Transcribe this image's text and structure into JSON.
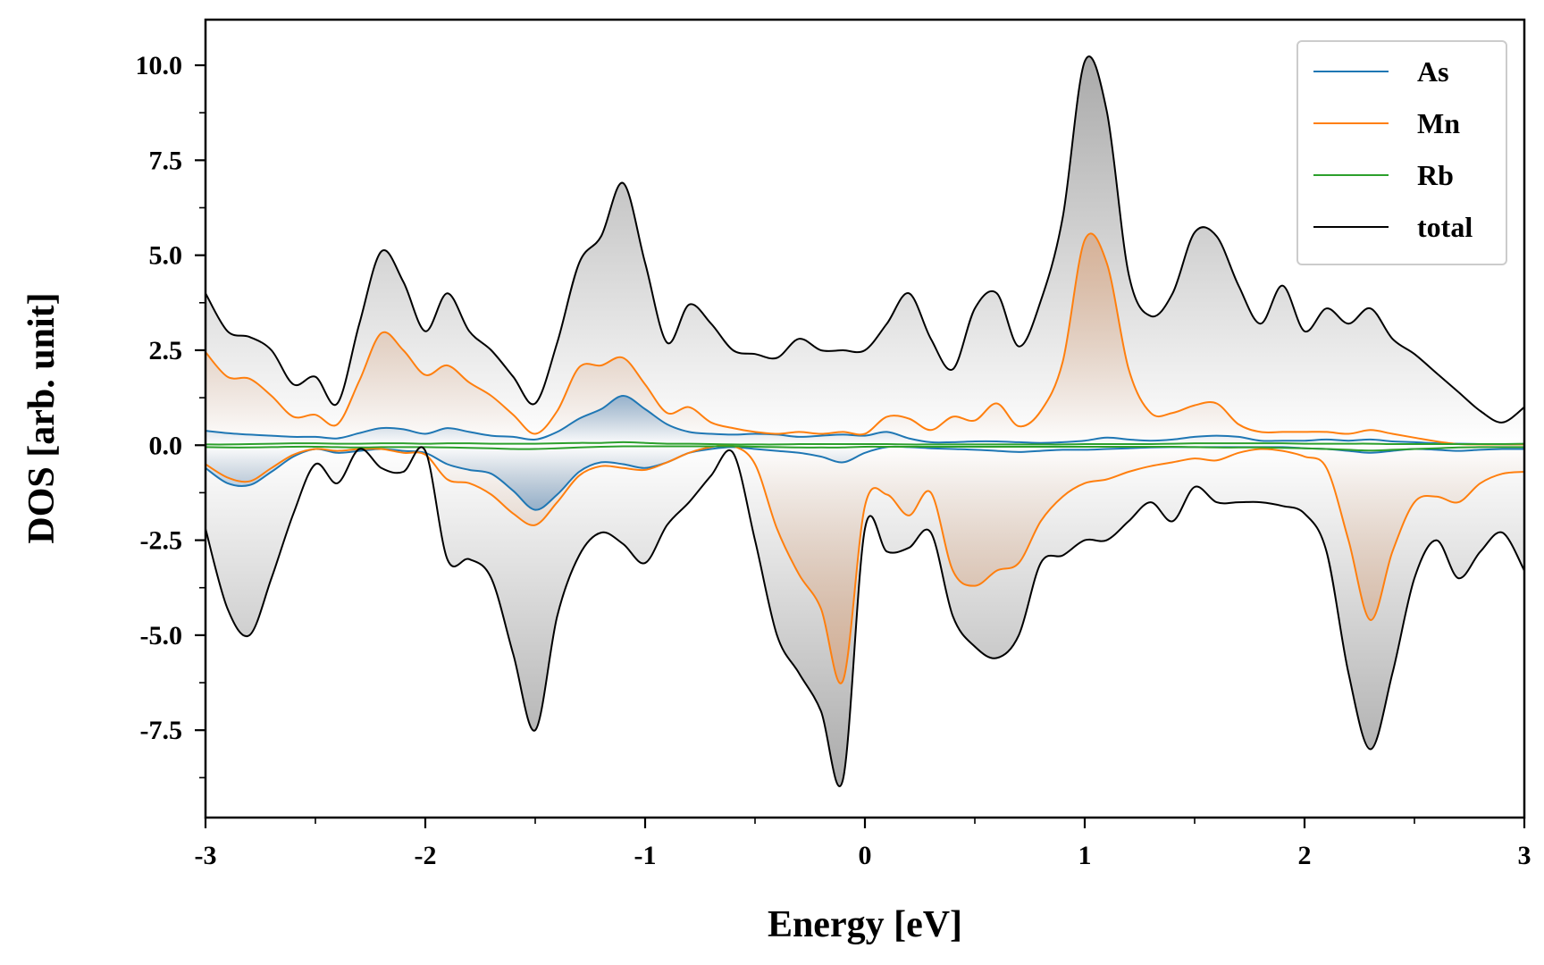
{
  "chart_data": {
    "type": "line",
    "xlabel": "Energy [eV]",
    "ylabel": "DOS [arb. unit]",
    "xlim": [
      -3,
      3
    ],
    "ylim": [
      -9.8,
      11.2
    ],
    "xticks": [
      -3,
      -2,
      -1,
      0,
      1,
      2,
      3
    ],
    "xtick_labels": [
      "-3",
      "-2",
      "-1",
      "0",
      "1",
      "2",
      "3"
    ],
    "yticks": [
      -7.5,
      -5.0,
      -2.5,
      0.0,
      2.5,
      5.0,
      7.5,
      10.0
    ],
    "ytick_labels": [
      "-7.5",
      "-5.0",
      "-2.5",
      "0.0",
      "2.5",
      "5.0",
      "7.5",
      "10.0"
    ],
    "grid": false,
    "legend_position": "top-right",
    "x": [
      -3.0,
      -2.9,
      -2.8,
      -2.7,
      -2.6,
      -2.5,
      -2.4,
      -2.3,
      -2.2,
      -2.1,
      -2.0,
      -1.9,
      -1.8,
      -1.7,
      -1.6,
      -1.5,
      -1.4,
      -1.3,
      -1.2,
      -1.1,
      -1.0,
      -0.9,
      -0.8,
      -0.7,
      -0.6,
      -0.5,
      -0.4,
      -0.3,
      -0.2,
      -0.1,
      0.0,
      0.1,
      0.2,
      0.3,
      0.4,
      0.5,
      0.6,
      0.7,
      0.8,
      0.9,
      1.0,
      1.1,
      1.2,
      1.3,
      1.4,
      1.5,
      1.6,
      1.7,
      1.8,
      1.9,
      2.0,
      2.1,
      2.2,
      2.3,
      2.4,
      2.5,
      2.6,
      2.7,
      2.8,
      2.9,
      3.0
    ],
    "series": [
      {
        "name": "As",
        "color": "#1f77b4",
        "up": [
          0.38,
          0.32,
          0.28,
          0.25,
          0.22,
          0.22,
          0.18,
          0.32,
          0.45,
          0.42,
          0.3,
          0.45,
          0.35,
          0.25,
          0.22,
          0.15,
          0.35,
          0.7,
          0.95,
          1.3,
          0.95,
          0.55,
          0.35,
          0.3,
          0.28,
          0.3,
          0.28,
          0.22,
          0.25,
          0.28,
          0.25,
          0.35,
          0.18,
          0.08,
          0.08,
          0.1,
          0.1,
          0.08,
          0.06,
          0.08,
          0.12,
          0.2,
          0.15,
          0.12,
          0.15,
          0.22,
          0.25,
          0.22,
          0.12,
          0.12,
          0.12,
          0.15,
          0.12,
          0.15,
          0.1,
          0.08,
          0.05,
          0.04,
          0.03,
          0.02,
          0.02
        ],
        "down": [
          -0.6,
          -1.0,
          -1.05,
          -0.7,
          -0.3,
          -0.1,
          -0.2,
          -0.15,
          -0.1,
          -0.15,
          -0.2,
          -0.5,
          -0.65,
          -0.75,
          -1.2,
          -1.7,
          -1.3,
          -0.7,
          -0.45,
          -0.5,
          -0.6,
          -0.45,
          -0.2,
          -0.1,
          -0.05,
          -0.1,
          -0.15,
          -0.2,
          -0.3,
          -0.45,
          -0.2,
          -0.05,
          -0.05,
          -0.08,
          -0.1,
          -0.12,
          -0.15,
          -0.18,
          -0.15,
          -0.12,
          -0.12,
          -0.1,
          -0.08,
          -0.06,
          -0.05,
          -0.05,
          -0.05,
          -0.05,
          -0.05,
          -0.05,
          -0.08,
          -0.1,
          -0.15,
          -0.2,
          -0.15,
          -0.1,
          -0.12,
          -0.15,
          -0.12,
          -0.1,
          -0.1
        ]
      },
      {
        "name": "Mn",
        "color": "#ff7f0e",
        "up": [
          2.45,
          1.8,
          1.75,
          1.3,
          0.75,
          0.8,
          0.55,
          1.7,
          2.95,
          2.5,
          1.85,
          2.1,
          1.65,
          1.3,
          0.8,
          0.3,
          0.9,
          2.05,
          2.1,
          2.3,
          1.6,
          0.85,
          1.0,
          0.6,
          0.45,
          0.35,
          0.3,
          0.35,
          0.3,
          0.35,
          0.3,
          0.75,
          0.7,
          0.4,
          0.75,
          0.65,
          1.1,
          0.5,
          0.9,
          2.2,
          5.4,
          4.8,
          2.0,
          0.85,
          0.85,
          1.05,
          1.1,
          0.55,
          0.35,
          0.35,
          0.35,
          0.35,
          0.3,
          0.4,
          0.3,
          0.2,
          0.1,
          0.03,
          0.02,
          0.02,
          0.02
        ],
        "down": [
          -0.5,
          -0.85,
          -0.95,
          -0.6,
          -0.25,
          -0.1,
          -0.15,
          -0.1,
          -0.1,
          -0.2,
          -0.25,
          -0.9,
          -1.0,
          -1.3,
          -1.8,
          -2.1,
          -1.5,
          -0.8,
          -0.55,
          -0.6,
          -0.65,
          -0.45,
          -0.2,
          -0.05,
          -0.02,
          -0.5,
          -2.2,
          -3.4,
          -4.3,
          -6.2,
          -1.6,
          -1.3,
          -1.85,
          -1.25,
          -3.3,
          -3.7,
          -3.3,
          -3.1,
          -2.0,
          -1.35,
          -1.0,
          -0.9,
          -0.7,
          -0.55,
          -0.45,
          -0.35,
          -0.4,
          -0.2,
          -0.1,
          -0.15,
          -0.3,
          -0.6,
          -2.5,
          -4.6,
          -2.8,
          -1.5,
          -1.35,
          -1.5,
          -1.0,
          -0.75,
          -0.7
        ]
      },
      {
        "name": "Rb",
        "color": "#2ca02c",
        "up": [
          0.02,
          0.02,
          0.03,
          0.04,
          0.05,
          0.05,
          0.04,
          0.04,
          0.05,
          0.05,
          0.04,
          0.05,
          0.05,
          0.04,
          0.04,
          0.04,
          0.05,
          0.06,
          0.06,
          0.08,
          0.06,
          0.04,
          0.04,
          0.03,
          0.02,
          0.02,
          0.02,
          0.03,
          0.03,
          0.03,
          0.03,
          0.03,
          0.02,
          0.02,
          0.02,
          0.02,
          0.02,
          0.02,
          0.02,
          0.02,
          0.03,
          0.03,
          0.03,
          0.03,
          0.04,
          0.05,
          0.05,
          0.05,
          0.05,
          0.05,
          0.04,
          0.04,
          0.04,
          0.04,
          0.03,
          0.03,
          0.03,
          0.03,
          0.03,
          0.03,
          0.04
        ],
        "down": [
          -0.05,
          -0.06,
          -0.06,
          -0.05,
          -0.04,
          -0.04,
          -0.05,
          -0.06,
          -0.05,
          -0.05,
          -0.05,
          -0.06,
          -0.07,
          -0.08,
          -0.1,
          -0.1,
          -0.08,
          -0.06,
          -0.04,
          -0.03,
          -0.03,
          -0.03,
          -0.03,
          -0.03,
          -0.03,
          -0.04,
          -0.05,
          -0.06,
          -0.06,
          -0.06,
          -0.04,
          -0.04,
          -0.04,
          -0.04,
          -0.04,
          -0.04,
          -0.04,
          -0.04,
          -0.04,
          -0.04,
          -0.04,
          -0.04,
          -0.04,
          -0.04,
          -0.04,
          -0.05,
          -0.06,
          -0.06,
          -0.06,
          -0.07,
          -0.08,
          -0.1,
          -0.12,
          -0.14,
          -0.12,
          -0.1,
          -0.08,
          -0.06,
          -0.05,
          -0.05,
          -0.05
        ]
      },
      {
        "name": "total",
        "color": "#000000",
        "up": [
          4.0,
          3.0,
          2.85,
          2.5,
          1.6,
          1.8,
          1.1,
          3.2,
          5.1,
          4.3,
          3.0,
          4.0,
          3.0,
          2.5,
          1.8,
          1.1,
          2.7,
          4.8,
          5.5,
          6.9,
          4.8,
          2.7,
          3.7,
          3.2,
          2.5,
          2.4,
          2.3,
          2.8,
          2.5,
          2.5,
          2.5,
          3.2,
          4.0,
          2.8,
          2.0,
          3.6,
          4.0,
          2.6,
          3.8,
          6.0,
          10.1,
          8.8,
          4.5,
          3.4,
          4.0,
          5.6,
          5.5,
          4.2,
          3.2,
          4.2,
          3.0,
          3.6,
          3.2,
          3.6,
          2.8,
          2.4,
          1.9,
          1.4,
          0.9,
          0.6,
          1.0
        ],
        "down": [
          -2.2,
          -4.3,
          -5.0,
          -3.5,
          -1.8,
          -0.5,
          -1.0,
          -0.1,
          -0.6,
          -0.7,
          -0.15,
          -3.0,
          -3.0,
          -3.5,
          -5.5,
          -7.5,
          -4.5,
          -2.9,
          -2.3,
          -2.6,
          -3.1,
          -2.1,
          -1.5,
          -0.8,
          -0.2,
          -2.5,
          -5.0,
          -6.0,
          -7.0,
          -8.8,
          -2.2,
          -2.8,
          -2.7,
          -2.3,
          -4.5,
          -5.3,
          -5.6,
          -5.0,
          -3.1,
          -2.9,
          -2.5,
          -2.5,
          -2.0,
          -1.5,
          -2.0,
          -1.1,
          -1.5,
          -1.5,
          -1.5,
          -1.6,
          -1.8,
          -2.8,
          -6.0,
          -8.0,
          -6.0,
          -3.5,
          -2.5,
          -3.5,
          -2.8,
          -2.3,
          -3.3
        ]
      }
    ]
  }
}
